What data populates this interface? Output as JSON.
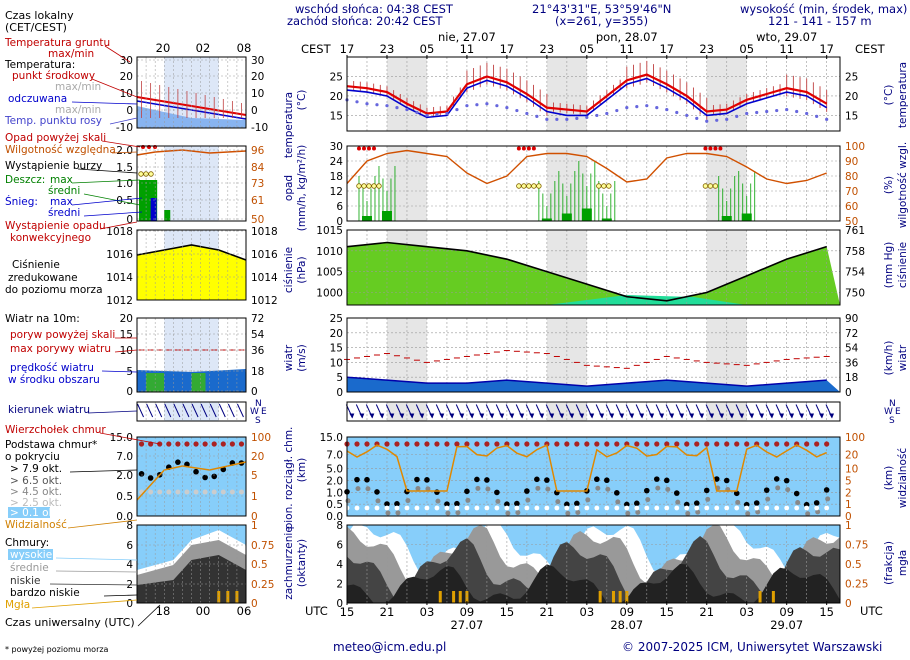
{
  "header": {
    "sunrise": "wschód słońca: 04:38 CEST",
    "sunset": "zachód słońca: 20:42 CEST",
    "coords": "21°43'31\"E, 53°59'46\"N",
    "grid": "(x=261, y=355)",
    "height_title": "wysokość (min, środek, max)",
    "height_values": "121 - 141 - 157 m"
  },
  "left": {
    "time_label": "Czas lokalny",
    "time_label2": "(CET/CEST)",
    "local_ticks": [
      "20",
      "02",
      "08"
    ],
    "utc_ticks": [
      "18",
      "00",
      "06"
    ],
    "utc_label": "Czas uniwersalny (UTC)",
    "footnote": "* powyżej poziomu morza",
    "temp": {
      "ground": "Temperatura gruntu",
      "ground_mm": "max/min",
      "title": "Temperatura:",
      "mid": "punkt środkowy",
      "mid_mm": "max/min",
      "felt": "odczuwana",
      "felt_mm": "max/min",
      "dew": "Temp. punktu rosy"
    },
    "precip": {
      "above": "Opad powyżej skali",
      "humidity": "Wilgotność względna",
      "storm": "Wystąpienie burzy",
      "rain": "Deszcz:",
      "max": "max",
      "mid": "średni",
      "snow": "Śnieg:",
      "max2": "max",
      "mid2": "średni",
      "conv": "Wystąpienie opadu",
      "conv2": "konwekcyjnego"
    },
    "pressure": {
      "l1": "Ciśnienie",
      "l2": "zredukowane",
      "l3": "do poziomu morza"
    },
    "wind": {
      "title": "Wiatr na 10m:",
      "gust_above": "poryw powyżej skali",
      "gust_max": "max porywy wiatru",
      "speed": "prędkość wiatru",
      "speed2": "w środku obszaru",
      "dir": "kierunek wiatru"
    },
    "cloud_top": "Wierzchołek chmur",
    "cloud_base": "Podstawa chmur*",
    "cloud_base2": "o pokryciu",
    "okt": [
      "> 7.9 okt.",
      "> 6.5 okt.",
      "> 4.5 okt.",
      "> 2.5 okt.",
      "> 0.1 okt."
    ],
    "visibility": "Widzialność",
    "clouds": {
      "title": "Chmury:",
      "high": "wysokie",
      "mid": "średnie",
      "low": "niskie",
      "vlow": "bardzo niskie",
      "fog": "Mgła"
    }
  },
  "right": {
    "cest": "CEST",
    "utc": "UTC",
    "local_ticks": [
      "17",
      "23",
      "05",
      "11",
      "17",
      "23",
      "05",
      "11",
      "17",
      "23",
      "05",
      "11",
      "17"
    ],
    "utc_ticks": [
      "15",
      "21",
      "03",
      "09",
      "15",
      "21",
      "03",
      "09",
      "15",
      "21",
      "03",
      "09",
      "15"
    ],
    "days_top": [
      "nie, 27.07",
      "pon, 28.07",
      "wto, 29.07"
    ],
    "days_bottom": [
      "27.07",
      "28.07",
      "29.07"
    ],
    "axis": {
      "temp_l": "temperatura",
      "temp_lu": "(°C)",
      "temp_r": "(°C)",
      "temp_r2": "temperatura",
      "precip_l": "opad",
      "precip_lu": "(mm/h, kg/m²/h)",
      "precip_r": "(%)",
      "precip_r2": "wilgotność wzgl.",
      "pres_l": "ciśnienie",
      "pres_lu": "(hPa)",
      "pres_r": "(mm Hg)",
      "pres_r2": "ciśnienie",
      "wind_l": "wiatr",
      "wind_lu": "(m/s)",
      "wind_r": "(km/h)",
      "wind_r2": "wiatr",
      "cloud_l": "pion. rozciągł. chm.",
      "cloud_lu": "(km)",
      "cloud_r": "(km)",
      "cloud_r2": "widzialność",
      "cov_l": "zachmurzenie",
      "cov_lu": "(oktanty)",
      "cov_r": "(frakcja)",
      "cov_r2": "mgła"
    }
  },
  "footer": {
    "email": "meteo@icm.edu.pl",
    "copyright": "© 2007-2025 ICM, Uniwersytet Warszawski"
  },
  "chart_data": [
    {
      "type": "line",
      "title": "temperatura",
      "ylabel": "(°C)",
      "ylim": [
        11,
        30
      ],
      "yticks": [
        15,
        20,
        25
      ],
      "x_hours": [
        0,
        3,
        6,
        9,
        12,
        15,
        18,
        21,
        24,
        27,
        30,
        33,
        36,
        39,
        42,
        45,
        48,
        51,
        54,
        57,
        60,
        63,
        66,
        69,
        72
      ],
      "series": [
        {
          "name": "punkt środkowy",
          "color": "#e00000",
          "values": [
            22.5,
            22,
            21,
            18,
            15.5,
            16,
            23,
            25,
            23.5,
            20.5,
            17,
            16.5,
            16,
            20,
            24,
            25.5,
            23,
            20,
            16,
            16.5,
            19,
            20.5,
            22,
            21,
            18
          ]
        },
        {
          "name": "odczuwana",
          "color": "#0000cc",
          "values": [
            21.5,
            21,
            20,
            17,
            14.5,
            15,
            22,
            24,
            22.5,
            19.5,
            16,
            15,
            15,
            19,
            23,
            24.5,
            22,
            19,
            15,
            15.5,
            18,
            19.5,
            21,
            20,
            17
          ]
        },
        {
          "name": "Temp. punktu rosy",
          "color": "#6666dd",
          "values": [
            19,
            18,
            17.5,
            16.5,
            15,
            15.5,
            17.5,
            18,
            17,
            15.5,
            14,
            14,
            14.5,
            15.5,
            17,
            17.5,
            16.5,
            15,
            13.5,
            14,
            15.5,
            16,
            16.5,
            15.5,
            14
          ]
        }
      ]
    },
    {
      "type": "bar",
      "title": "opad",
      "ylabel": "(mm/h, kg/m²/h)",
      "ylim": [
        0,
        30
      ],
      "yticks": [
        0,
        6,
        12,
        18,
        24,
        30
      ],
      "right_axis": {
        "label": "wilgotność wzgl. (%)",
        "ylim": [
          50,
          100
        ],
        "yticks": [
          50,
          60,
          70,
          80,
          90,
          100
        ]
      },
      "x_hours": [
        0,
        3,
        6,
        9,
        12,
        15,
        18,
        21,
        24,
        27,
        30,
        33,
        36,
        39,
        42,
        45,
        48,
        51,
        54,
        57,
        60,
        63,
        66,
        69,
        72
      ],
      "rain_mean": [
        0,
        2,
        4,
        0,
        0,
        0,
        0,
        0,
        0,
        0,
        1,
        3,
        5,
        1,
        0,
        0,
        0,
        0,
        0,
        2,
        3,
        0,
        0,
        0,
        0
      ],
      "humidity": [
        75,
        90,
        95,
        97,
        95,
        93,
        82,
        75,
        80,
        93,
        95,
        95,
        93,
        85,
        76,
        78,
        92,
        95,
        95,
        93,
        86,
        78,
        75,
        77,
        82
      ]
    },
    {
      "type": "area",
      "title": "ciśnienie",
      "ylabel": "(hPa)",
      "ylim": [
        997,
        1015
      ],
      "yticks": [
        1000,
        1005,
        1010,
        1015
      ],
      "right_axis": {
        "label": "ciśnienie (mm Hg)",
        "yticks": [
          750,
          754,
          758,
          761
        ]
      },
      "x_hours": [
        0,
        6,
        12,
        18,
        24,
        30,
        36,
        42,
        48,
        54,
        60,
        66,
        72
      ],
      "values": [
        1011,
        1012,
        1011,
        1010,
        1008,
        1005,
        1002,
        999,
        998,
        1000,
        1004,
        1008,
        1011
      ]
    },
    {
      "type": "line",
      "title": "wiatr",
      "ylabel": "(m/s)",
      "ylim": [
        0,
        25
      ],
      "yticks": [
        0,
        5,
        10,
        15,
        20,
        25
      ],
      "right_axis": {
        "label": "wiatr (km/h)",
        "yticks": [
          0,
          18,
          36,
          54,
          72,
          90
        ]
      },
      "x_hours": [
        0,
        6,
        12,
        18,
        24,
        30,
        36,
        42,
        48,
        54,
        60,
        66,
        72
      ],
      "series": [
        {
          "name": "max porywy wiatru",
          "color": "#c00000",
          "values": [
            11,
            13,
            10,
            12,
            14,
            13,
            9,
            8,
            12,
            10,
            9,
            11,
            12
          ]
        },
        {
          "name": "prędkość wiatru",
          "color": "#0000cc",
          "values": [
            5,
            4,
            3,
            3,
            4,
            3,
            2,
            3,
            4,
            3,
            2,
            3,
            4
          ]
        }
      ]
    },
    {
      "type": "scatter",
      "title": "pion. rozciągł. chm.",
      "ylabel": "(km)",
      "yticks": [
        "0.0",
        "0.5",
        "1.0",
        "2.0",
        "5.0",
        "7.0",
        "15.0"
      ],
      "right_axis": {
        "label": "widzialność (km)",
        "yticks": [
          0,
          1,
          2,
          5,
          10,
          20,
          100
        ]
      }
    },
    {
      "type": "area",
      "title": "zachmurzenie",
      "ylabel": "(oktanty)",
      "ylim": [
        0,
        8
      ],
      "yticks": [
        0,
        2,
        4,
        6,
        8
      ],
      "right_axis": {
        "label": "mgła (frakcja)",
        "yticks": [
          0,
          0.25,
          0.5,
          0.75,
          1
        ]
      }
    }
  ]
}
